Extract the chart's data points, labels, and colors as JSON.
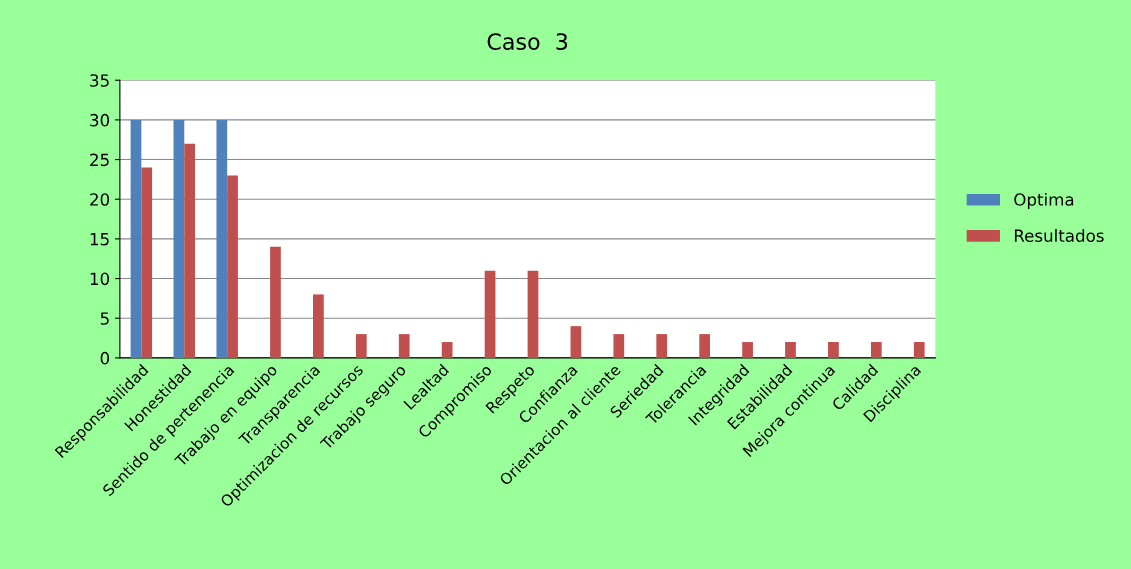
{
  "chart_data": {
    "type": "bar",
    "title": "Caso  3",
    "categories": [
      "Responsabilidad",
      "Honestidad",
      "Sentido de pertenencia",
      "Trabajo en equipo",
      "Transparencia",
      "Optimizacion de recursos",
      "Trabajo seguro",
      "Lealtad",
      "Compromiso",
      "Respeto",
      "Confianza",
      "Orientacion al cliente",
      "Seriedad",
      "Tolerancia",
      "Integridad",
      "Estabilidad",
      "Mejora continua",
      "Calidad",
      "Disciplina"
    ],
    "series": [
      {
        "name": "Optima",
        "color": "#4f81bd",
        "values": [
          30,
          30,
          30,
          null,
          null,
          null,
          null,
          null,
          null,
          null,
          null,
          null,
          null,
          null,
          null,
          null,
          null,
          null,
          null
        ]
      },
      {
        "name": "Resultados",
        "color": "#c0504d",
        "values": [
          24,
          27,
          23,
          14,
          8,
          3,
          3,
          2,
          11,
          11,
          4,
          3,
          3,
          3,
          2,
          2,
          2,
          2,
          2
        ]
      }
    ],
    "ylim": [
      0,
      35
    ],
    "yticks": [
      0,
      5,
      10,
      15,
      20,
      25,
      30,
      35
    ],
    "grid": "y",
    "legend": "right"
  }
}
